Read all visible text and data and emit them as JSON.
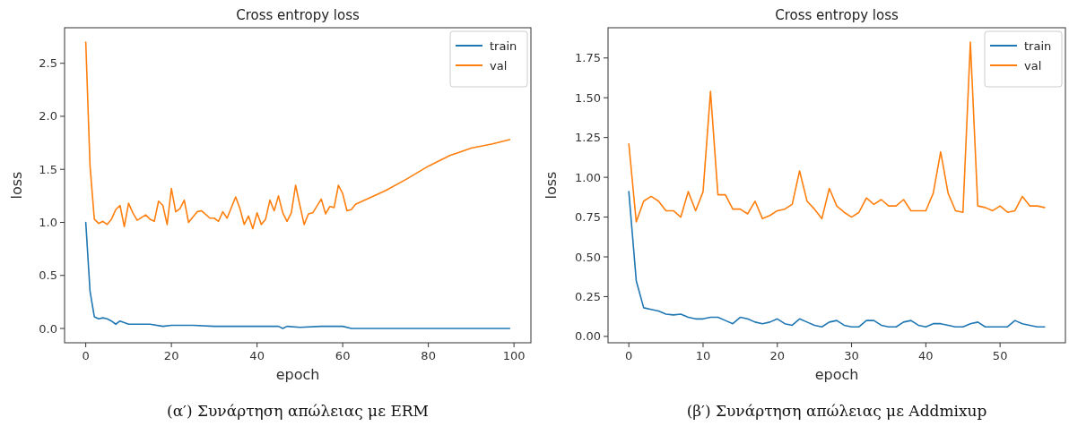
{
  "chart_data": [
    {
      "type": "line",
      "title": "Cross entropy loss",
      "xlabel": "epoch",
      "ylabel": "loss",
      "annotations": [
        "(α′) Συνάρτηση απώλειας με ERM"
      ],
      "xlim": [
        -4.95,
        103.95
      ],
      "xticks": [
        0,
        20,
        40,
        60,
        80,
        100
      ],
      "ylim": [
        -0.135,
        2.835
      ],
      "yticks": [
        {
          "value": 0,
          "label": "0.0"
        },
        {
          "value": 0.5,
          "label": "0.5"
        },
        {
          "value": 1,
          "label": "1.0"
        },
        {
          "value": 1.5,
          "label": "1.5"
        },
        {
          "value": 2,
          "label": "2.0"
        },
        {
          "value": 2.5,
          "label": "2.5"
        }
      ],
      "legend": "top right",
      "grid": false,
      "series": [
        {
          "name": "train",
          "color": "#1f77b4",
          "x": [
            0,
            1,
            2,
            3,
            4,
            5,
            6,
            7,
            8,
            10,
            12,
            15,
            18,
            20,
            25,
            30,
            35,
            40,
            45,
            46,
            47,
            50,
            55,
            60,
            62,
            70,
            80,
            90,
            99
          ],
          "values": [
            1.0,
            0.35,
            0.11,
            0.09,
            0.1,
            0.09,
            0.07,
            0.04,
            0.07,
            0.04,
            0.04,
            0.04,
            0.02,
            0.03,
            0.03,
            0.02,
            0.02,
            0.02,
            0.02,
            0.0,
            0.02,
            0.01,
            0.02,
            0.02,
            0.0,
            0.0,
            0.0,
            0.0,
            0.0
          ]
        },
        {
          "name": "val",
          "color": "#ff7f0e",
          "x": [
            0,
            1,
            2,
            3,
            4,
            5,
            6,
            7,
            8,
            9,
            10,
            11,
            12,
            14,
            15,
            16,
            17,
            18,
            19,
            20,
            21,
            22,
            23,
            24,
            26,
            27,
            29,
            30,
            31,
            32,
            33,
            35,
            36,
            37,
            38,
            39,
            40,
            41,
            42,
            43,
            44,
            45,
            46,
            47,
            48,
            49,
            50,
            51,
            52,
            53,
            55,
            56,
            57,
            58,
            59,
            60,
            61,
            62,
            63,
            70,
            75,
            80,
            85,
            90,
            95,
            99
          ],
          "values": [
            2.7,
            1.53,
            1.03,
            0.99,
            1.01,
            0.98,
            1.03,
            1.12,
            1.16,
            0.96,
            1.18,
            1.09,
            1.02,
            1.07,
            1.03,
            1.01,
            1.2,
            1.16,
            0.98,
            1.32,
            1.1,
            1.13,
            1.21,
            1.0,
            1.1,
            1.11,
            1.04,
            1.04,
            1.01,
            1.1,
            1.04,
            1.24,
            1.13,
            0.98,
            1.06,
            0.94,
            1.09,
            0.98,
            1.03,
            1.21,
            1.11,
            1.25,
            1.09,
            1.01,
            1.09,
            1.35,
            1.16,
            0.98,
            1.08,
            1.09,
            1.22,
            1.08,
            1.15,
            1.14,
            1.35,
            1.27,
            1.11,
            1.12,
            1.17,
            1.3,
            1.41,
            1.53,
            1.63,
            1.7,
            1.74,
            1.78
          ]
        }
      ]
    },
    {
      "type": "line",
      "title": "Cross entropy loss",
      "xlabel": "epoch",
      "ylabel": "loss",
      "annotations": [
        "(β′) Συνάρτηση απώλειας με Addmixup"
      ],
      "x": [
        0,
        1,
        2,
        3,
        4,
        5,
        6,
        7,
        8,
        9,
        10,
        11,
        12,
        13,
        14,
        15,
        16,
        17,
        18,
        19,
        20,
        21,
        22,
        23,
        24,
        25,
        26,
        27,
        28,
        29,
        30,
        31,
        32,
        33,
        34,
        35,
        36,
        37,
        38,
        39,
        40,
        41,
        42,
        43,
        44,
        45,
        46,
        47,
        48,
        49,
        50,
        51,
        52,
        53,
        54,
        55,
        56
      ],
      "xlim": [
        -2.8,
        58.8
      ],
      "xticks": [
        0,
        10,
        20,
        30,
        40,
        50
      ],
      "ylim": [
        -0.04,
        1.94
      ],
      "yticks": [
        {
          "value": 0,
          "label": "0.00"
        },
        {
          "value": 0.25,
          "label": "0.25"
        },
        {
          "value": 0.5,
          "label": "0.50"
        },
        {
          "value": 0.75,
          "label": "0.75"
        },
        {
          "value": 1,
          "label": "1.00"
        },
        {
          "value": 1.25,
          "label": "1.25"
        },
        {
          "value": 1.5,
          "label": "1.50"
        },
        {
          "value": 1.75,
          "label": "1.75"
        }
      ],
      "legend": "top right",
      "grid": false,
      "series": [
        {
          "name": "train",
          "color": "#1f77b4",
          "values": [
            0.91,
            0.35,
            0.18,
            0.17,
            0.16,
            0.14,
            0.135,
            0.14,
            0.12,
            0.11,
            0.11,
            0.12,
            0.12,
            0.1,
            0.08,
            0.12,
            0.11,
            0.09,
            0.08,
            0.09,
            0.11,
            0.08,
            0.07,
            0.11,
            0.09,
            0.07,
            0.06,
            0.09,
            0.1,
            0.07,
            0.06,
            0.06,
            0.1,
            0.1,
            0.07,
            0.06,
            0.06,
            0.09,
            0.1,
            0.07,
            0.06,
            0.08,
            0.08,
            0.07,
            0.06,
            0.06,
            0.08,
            0.09,
            0.06,
            0.06,
            0.06,
            0.06,
            0.1,
            0.08,
            0.07,
            0.06,
            0.06
          ]
        },
        {
          "name": "val",
          "color": "#ff7f0e",
          "values": [
            1.21,
            0.72,
            0.85,
            0.88,
            0.85,
            0.79,
            0.79,
            0.75,
            0.91,
            0.79,
            0.91,
            1.54,
            0.89,
            0.89,
            0.8,
            0.8,
            0.77,
            0.85,
            0.74,
            0.76,
            0.79,
            0.8,
            0.83,
            1.04,
            0.85,
            0.8,
            0.74,
            0.93,
            0.82,
            0.78,
            0.75,
            0.78,
            0.87,
            0.83,
            0.86,
            0.82,
            0.82,
            0.86,
            0.79,
            0.79,
            0.79,
            0.9,
            1.16,
            0.9,
            0.79,
            0.78,
            1.85,
            0.82,
            0.81,
            0.79,
            0.82,
            0.78,
            0.79,
            0.88,
            0.82,
            0.82,
            0.81
          ]
        }
      ]
    }
  ]
}
